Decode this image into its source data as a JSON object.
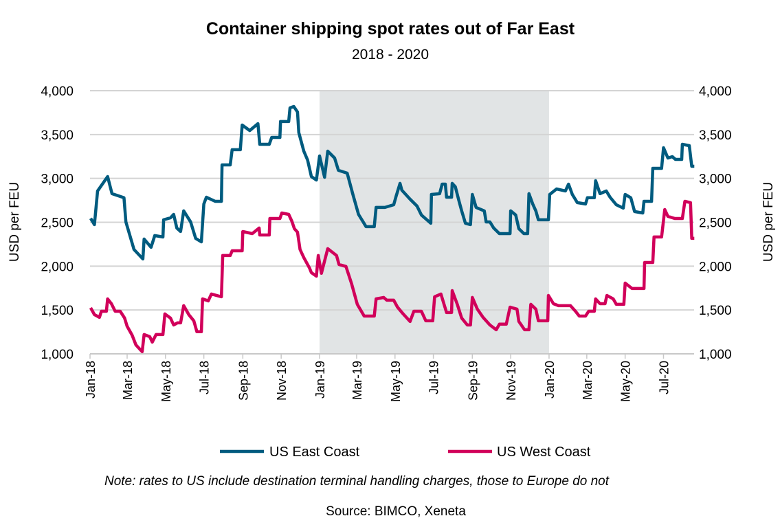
{
  "chart_data": {
    "type": "line",
    "title": "Container shipping spot rates out of Far East",
    "subtitle": "2018 - 2020",
    "ylabel_left": "USD per FEU",
    "ylabel_right": "USD per FEU",
    "ylim": [
      1000,
      4000
    ],
    "yticks": [
      "1,000",
      "1,500",
      "2,000",
      "2,500",
      "3,000",
      "3,500",
      "4,000"
    ],
    "ytick_values": [
      1000,
      1500,
      2000,
      2500,
      3000,
      3500,
      4000
    ],
    "xlim": [
      "2018-01-01",
      "2020-08-19"
    ],
    "xticks": [
      {
        "date": "2018-01-01",
        "label": "Jan-18"
      },
      {
        "date": "2018-03-01",
        "label": "Mar-18"
      },
      {
        "date": "2018-05-01",
        "label": "May-18"
      },
      {
        "date": "2018-07-01",
        "label": "Jul-18"
      },
      {
        "date": "2018-09-01",
        "label": "Sep-18"
      },
      {
        "date": "2018-11-01",
        "label": "Nov-18"
      },
      {
        "date": "2019-01-01",
        "label": "Jan-19"
      },
      {
        "date": "2019-03-01",
        "label": "Mar-19"
      },
      {
        "date": "2019-05-01",
        "label": "May-19"
      },
      {
        "date": "2019-07-01",
        "label": "Jul-19"
      },
      {
        "date": "2019-09-01",
        "label": "Sep-19"
      },
      {
        "date": "2019-11-01",
        "label": "Nov-19"
      },
      {
        "date": "2020-01-01",
        "label": "Jan-20"
      },
      {
        "date": "2020-03-01",
        "label": "Mar-20"
      },
      {
        "date": "2020-05-01",
        "label": "May-20"
      },
      {
        "date": "2020-07-01",
        "label": "Jul-20"
      }
    ],
    "shaded_period": [
      "2019-01-01",
      "2020-01-01"
    ],
    "shade_color": "#e1e4e5",
    "grid": true,
    "legend_position": "bottom",
    "series": [
      {
        "name": "US East Coast",
        "color": "#005b7f",
        "points": [
          [
            "2018-01-02",
            2545
          ],
          [
            "2018-01-08",
            2473
          ],
          [
            "2018-01-13",
            2857
          ],
          [
            "2018-01-29",
            3021
          ],
          [
            "2018-02-05",
            2826
          ],
          [
            "2018-02-24",
            2780
          ],
          [
            "2018-02-27",
            2504
          ],
          [
            "2018-03-12",
            2190
          ],
          [
            "2018-03-26",
            2082
          ],
          [
            "2018-03-28",
            2309
          ],
          [
            "2018-04-08",
            2215
          ],
          [
            "2018-04-14",
            2348
          ],
          [
            "2018-04-27",
            2332
          ],
          [
            "2018-04-28",
            2528
          ],
          [
            "2018-05-09",
            2551
          ],
          [
            "2018-05-14",
            2590
          ],
          [
            "2018-05-19",
            2434
          ],
          [
            "2018-05-25",
            2395
          ],
          [
            "2018-05-30",
            2630
          ],
          [
            "2018-06-10",
            2504
          ],
          [
            "2018-06-18",
            2317
          ],
          [
            "2018-06-27",
            2277
          ],
          [
            "2018-07-01",
            2708
          ],
          [
            "2018-07-05",
            2786
          ],
          [
            "2018-07-19",
            2739
          ],
          [
            "2018-07-29",
            2739
          ],
          [
            "2018-07-30",
            3154
          ],
          [
            "2018-08-12",
            3154
          ],
          [
            "2018-08-15",
            3327
          ],
          [
            "2018-08-28",
            3327
          ],
          [
            "2018-08-31",
            3608
          ],
          [
            "2018-09-12",
            3546
          ],
          [
            "2018-09-25",
            3624
          ],
          [
            "2018-09-28",
            3389
          ],
          [
            "2018-10-13",
            3389
          ],
          [
            "2018-10-17",
            3467
          ],
          [
            "2018-10-30",
            3467
          ],
          [
            "2018-10-31",
            3648
          ],
          [
            "2018-11-13",
            3648
          ],
          [
            "2018-11-15",
            3804
          ],
          [
            "2018-11-21",
            3820
          ],
          [
            "2018-11-27",
            3757
          ],
          [
            "2018-11-29",
            3522
          ],
          [
            "2018-12-07",
            3311
          ],
          [
            "2018-12-13",
            3209
          ],
          [
            "2018-12-19",
            3021
          ],
          [
            "2018-12-27",
            2982
          ],
          [
            "2019-01-01",
            3256
          ],
          [
            "2019-01-09",
            3013
          ],
          [
            "2019-01-14",
            3311
          ],
          [
            "2019-01-25",
            3232
          ],
          [
            "2019-01-31",
            3092
          ],
          [
            "2019-02-14",
            3060
          ],
          [
            "2019-02-23",
            2817
          ],
          [
            "2019-03-04",
            2590
          ],
          [
            "2019-03-16",
            2450
          ],
          [
            "2019-03-29",
            2450
          ],
          [
            "2019-04-01",
            2669
          ],
          [
            "2019-04-15",
            2669
          ],
          [
            "2019-04-29",
            2700
          ],
          [
            "2019-05-03",
            2802
          ],
          [
            "2019-05-09",
            2943
          ],
          [
            "2019-05-12",
            2865
          ],
          [
            "2019-05-25",
            2763
          ],
          [
            "2019-06-05",
            2685
          ],
          [
            "2019-06-12",
            2583
          ],
          [
            "2019-06-27",
            2489
          ],
          [
            "2019-06-28",
            2817
          ],
          [
            "2019-07-11",
            2826
          ],
          [
            "2019-07-15",
            2935
          ],
          [
            "2019-07-20",
            2935
          ],
          [
            "2019-07-22",
            2786
          ],
          [
            "2019-07-30",
            2786
          ],
          [
            "2019-07-31",
            2943
          ],
          [
            "2019-08-05",
            2904
          ],
          [
            "2019-08-10",
            2763
          ],
          [
            "2019-08-15",
            2630
          ],
          [
            "2019-08-21",
            2489
          ],
          [
            "2019-08-29",
            2473
          ],
          [
            "2019-09-01",
            2817
          ],
          [
            "2019-09-07",
            2669
          ],
          [
            "2019-09-20",
            2630
          ],
          [
            "2019-09-23",
            2504
          ],
          [
            "2019-09-29",
            2504
          ],
          [
            "2019-10-05",
            2434
          ],
          [
            "2019-10-14",
            2371
          ],
          [
            "2019-10-31",
            2371
          ],
          [
            "2019-11-01",
            2630
          ],
          [
            "2019-11-09",
            2583
          ],
          [
            "2019-11-14",
            2426
          ],
          [
            "2019-11-22",
            2371
          ],
          [
            "2019-11-28",
            2371
          ],
          [
            "2019-11-30",
            2826
          ],
          [
            "2019-12-06",
            2708
          ],
          [
            "2019-12-11",
            2630
          ],
          [
            "2019-12-15",
            2528
          ],
          [
            "2019-12-31",
            2528
          ],
          [
            "2020-01-02",
            2817
          ],
          [
            "2020-01-13",
            2880
          ],
          [
            "2020-01-27",
            2857
          ],
          [
            "2020-02-01",
            2935
          ],
          [
            "2020-02-07",
            2817
          ],
          [
            "2020-02-15",
            2724
          ],
          [
            "2020-02-28",
            2708
          ],
          [
            "2020-03-02",
            2780
          ],
          [
            "2020-03-13",
            2780
          ],
          [
            "2020-03-15",
            2974
          ],
          [
            "2020-03-22",
            2826
          ],
          [
            "2020-04-01",
            2857
          ],
          [
            "2020-04-07",
            2786
          ],
          [
            "2020-04-17",
            2700
          ],
          [
            "2020-04-28",
            2661
          ],
          [
            "2020-05-01",
            2817
          ],
          [
            "2020-05-10",
            2780
          ],
          [
            "2020-05-16",
            2622
          ],
          [
            "2020-05-29",
            2606
          ],
          [
            "2020-05-31",
            2739
          ],
          [
            "2020-06-12",
            2739
          ],
          [
            "2020-06-14",
            3115
          ],
          [
            "2020-06-28",
            3115
          ],
          [
            "2020-07-01",
            3350
          ],
          [
            "2020-07-08",
            3232
          ],
          [
            "2020-07-15",
            3248
          ],
          [
            "2020-07-20",
            3217
          ],
          [
            "2020-07-30",
            3217
          ],
          [
            "2020-07-31",
            3389
          ],
          [
            "2020-08-11",
            3373
          ],
          [
            "2020-08-15",
            3138
          ],
          [
            "2020-08-19",
            3138
          ]
        ]
      },
      {
        "name": "US West Coast",
        "color": "#d1005a",
        "points": [
          [
            "2018-01-02",
            1525
          ],
          [
            "2018-01-08",
            1447
          ],
          [
            "2018-01-16",
            1416
          ],
          [
            "2018-01-19",
            1486
          ],
          [
            "2018-01-27",
            1486
          ],
          [
            "2018-01-29",
            1627
          ],
          [
            "2018-02-04",
            1572
          ],
          [
            "2018-02-10",
            1486
          ],
          [
            "2018-02-18",
            1486
          ],
          [
            "2018-02-25",
            1408
          ],
          [
            "2018-03-01",
            1314
          ],
          [
            "2018-03-09",
            1212
          ],
          [
            "2018-03-15",
            1102
          ],
          [
            "2018-03-25",
            1024
          ],
          [
            "2018-03-28",
            1220
          ],
          [
            "2018-04-06",
            1196
          ],
          [
            "2018-04-10",
            1134
          ],
          [
            "2018-04-16",
            1220
          ],
          [
            "2018-04-27",
            1220
          ],
          [
            "2018-04-30",
            1455
          ],
          [
            "2018-05-09",
            1408
          ],
          [
            "2018-05-14",
            1329
          ],
          [
            "2018-05-20",
            1353
          ],
          [
            "2018-05-25",
            1353
          ],
          [
            "2018-05-30",
            1549
          ],
          [
            "2018-06-07",
            1447
          ],
          [
            "2018-06-15",
            1377
          ],
          [
            "2018-06-20",
            1252
          ],
          [
            "2018-06-27",
            1252
          ],
          [
            "2018-06-29",
            1627
          ],
          [
            "2018-07-08",
            1604
          ],
          [
            "2018-07-13",
            1682
          ],
          [
            "2018-07-29",
            1651
          ],
          [
            "2018-07-31",
            2121
          ],
          [
            "2018-08-12",
            2121
          ],
          [
            "2018-08-15",
            2175
          ],
          [
            "2018-08-31",
            2175
          ],
          [
            "2018-09-01",
            2394
          ],
          [
            "2018-09-16",
            2371
          ],
          [
            "2018-09-27",
            2434
          ],
          [
            "2018-09-28",
            2355
          ],
          [
            "2018-10-13",
            2355
          ],
          [
            "2018-10-14",
            2543
          ],
          [
            "2018-10-30",
            2543
          ],
          [
            "2018-11-02",
            2606
          ],
          [
            "2018-11-13",
            2590
          ],
          [
            "2018-11-18",
            2512
          ],
          [
            "2018-11-22",
            2426
          ],
          [
            "2018-11-27",
            2387
          ],
          [
            "2018-12-01",
            2190
          ],
          [
            "2018-12-07",
            2097
          ],
          [
            "2018-12-16",
            1980
          ],
          [
            "2018-12-19",
            1926
          ],
          [
            "2018-12-27",
            1886
          ],
          [
            "2018-12-30",
            2121
          ],
          [
            "2019-01-04",
            1918
          ],
          [
            "2019-01-14",
            2199
          ],
          [
            "2019-01-28",
            2121
          ],
          [
            "2019-02-01",
            2019
          ],
          [
            "2019-02-12",
            1996
          ],
          [
            "2019-02-21",
            1800
          ],
          [
            "2019-03-02",
            1565
          ],
          [
            "2019-03-13",
            1431
          ],
          [
            "2019-03-29",
            1431
          ],
          [
            "2019-04-01",
            1627
          ],
          [
            "2019-04-13",
            1643
          ],
          [
            "2019-04-18",
            1612
          ],
          [
            "2019-04-29",
            1612
          ],
          [
            "2019-05-05",
            1533
          ],
          [
            "2019-05-14",
            1455
          ],
          [
            "2019-05-25",
            1369
          ],
          [
            "2019-05-31",
            1486
          ],
          [
            "2019-06-12",
            1486
          ],
          [
            "2019-06-19",
            1377
          ],
          [
            "2019-06-30",
            1377
          ],
          [
            "2019-07-03",
            1651
          ],
          [
            "2019-07-13",
            1682
          ],
          [
            "2019-07-22",
            1471
          ],
          [
            "2019-07-30",
            1471
          ],
          [
            "2019-07-31",
            1721
          ],
          [
            "2019-08-08",
            1565
          ],
          [
            "2019-08-15",
            1408
          ],
          [
            "2019-08-24",
            1329
          ],
          [
            "2019-08-29",
            1329
          ],
          [
            "2019-09-01",
            1643
          ],
          [
            "2019-09-09",
            1510
          ],
          [
            "2019-09-18",
            1416
          ],
          [
            "2019-09-29",
            1329
          ],
          [
            "2019-10-09",
            1275
          ],
          [
            "2019-10-14",
            1338
          ],
          [
            "2019-10-25",
            1338
          ],
          [
            "2019-10-31",
            1533
          ],
          [
            "2019-11-11",
            1510
          ],
          [
            "2019-11-14",
            1369
          ],
          [
            "2019-11-23",
            1275
          ],
          [
            "2019-11-30",
            1275
          ],
          [
            "2019-12-03",
            1565
          ],
          [
            "2019-12-11",
            1510
          ],
          [
            "2019-12-15",
            1377
          ],
          [
            "2019-12-30",
            1377
          ],
          [
            "2019-12-31",
            1666
          ],
          [
            "2020-01-08",
            1572
          ],
          [
            "2020-01-16",
            1549
          ],
          [
            "2020-02-04",
            1549
          ],
          [
            "2020-02-12",
            1486
          ],
          [
            "2020-02-18",
            1431
          ],
          [
            "2020-02-28",
            1431
          ],
          [
            "2020-03-04",
            1486
          ],
          [
            "2020-03-13",
            1486
          ],
          [
            "2020-03-15",
            1627
          ],
          [
            "2020-03-22",
            1572
          ],
          [
            "2020-03-30",
            1572
          ],
          [
            "2020-04-02",
            1666
          ],
          [
            "2020-04-12",
            1627
          ],
          [
            "2020-04-17",
            1565
          ],
          [
            "2020-04-29",
            1565
          ],
          [
            "2020-05-01",
            1807
          ],
          [
            "2020-05-12",
            1745
          ],
          [
            "2020-05-31",
            1745
          ],
          [
            "2020-06-01",
            2042
          ],
          [
            "2020-06-14",
            2042
          ],
          [
            "2020-06-16",
            2332
          ],
          [
            "2020-06-28",
            2332
          ],
          [
            "2020-07-03",
            2645
          ],
          [
            "2020-07-08",
            2567
          ],
          [
            "2020-07-19",
            2543
          ],
          [
            "2020-07-31",
            2543
          ],
          [
            "2020-08-04",
            2739
          ],
          [
            "2020-08-13",
            2724
          ],
          [
            "2020-08-15",
            2317
          ],
          [
            "2020-08-19",
            2317
          ]
        ]
      }
    ],
    "note": "Note: rates to US include destination terminal handling charges, those to Europe do not",
    "source": "Source: BIMCO, Xeneta"
  }
}
